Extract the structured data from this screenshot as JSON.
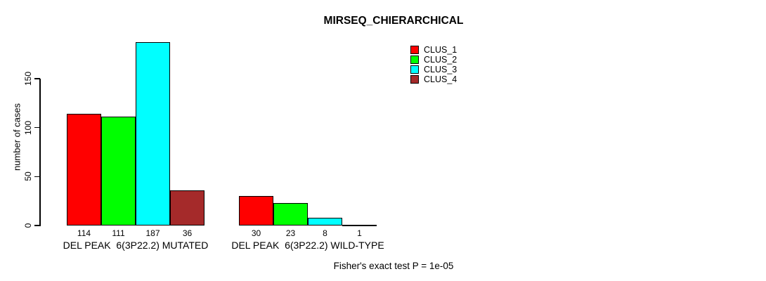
{
  "chart_data": {
    "type": "bar",
    "title": "MIRSEQ_CHIERARCHICAL",
    "ylabel": "number of cases",
    "xlabel": "",
    "yticks": [
      0,
      50,
      100,
      150
    ],
    "ylim": [
      0,
      150
    ],
    "grid": false,
    "legend_position": "top-right",
    "series": [
      "CLUS_1",
      "CLUS_2",
      "CLUS_3",
      "CLUS_4"
    ],
    "colors": [
      "#ff0000",
      "#00ff00",
      "#00ffff",
      "#a52a2a"
    ],
    "groups": [
      {
        "label": "DEL PEAK  6(3P22.2) MUTATED",
        "values": [
          114,
          111,
          187,
          36
        ]
      },
      {
        "label": "DEL PEAK  6(3P22.2) WILD-TYPE",
        "values": [
          30,
          23,
          8,
          1
        ]
      }
    ],
    "annotation": "Fisher's exact test P = 1e-05"
  }
}
